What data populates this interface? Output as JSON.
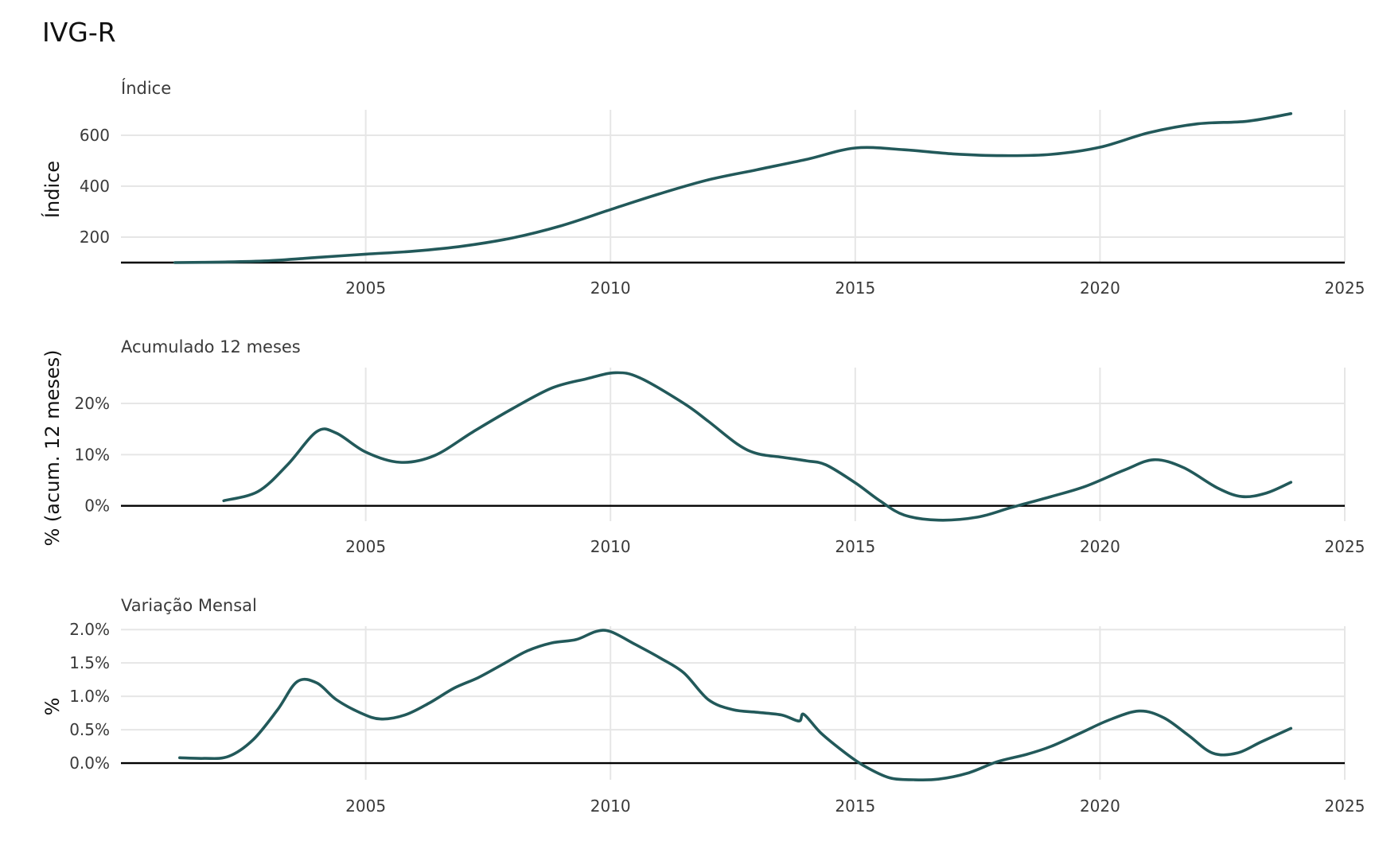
{
  "title": "IVG-R",
  "colors": {
    "line": "#22595a",
    "grid": "#e6e6e6",
    "baseline": "#000000"
  },
  "chart_data": [
    {
      "type": "line",
      "subtitle": "Índice",
      "ylabel": "Índice",
      "xlim": [
        2000,
        2025
      ],
      "ylim": [
        100,
        700
      ],
      "yticks": [
        200,
        400,
        600
      ],
      "yticklabels": [
        "200",
        "400",
        "600"
      ],
      "xticks": [
        2005,
        2010,
        2015,
        2020,
        2025
      ],
      "xticklabels": [
        "2005",
        "2010",
        "2015",
        "2020",
        "2025"
      ],
      "baseline": 100,
      "grid": true,
      "series": [
        {
          "x": [
            2001.1,
            2002,
            2003,
            2004,
            2005,
            2006,
            2007,
            2008,
            2009,
            2010,
            2011,
            2012,
            2013,
            2014,
            2015,
            2016,
            2017,
            2018,
            2019,
            2020,
            2021,
            2022,
            2023,
            2023.9
          ],
          "y": [
            100,
            102,
            107,
            120,
            133,
            145,
            165,
            197,
            245,
            308,
            370,
            425,
            465,
            505,
            550,
            543,
            527,
            520,
            525,
            553,
            610,
            645,
            655,
            685
          ]
        }
      ]
    },
    {
      "type": "line",
      "subtitle": "Acumulado 12 meses",
      "ylabel": "% (acum. 12 meses)",
      "xlim": [
        2000,
        2025
      ],
      "ylim": [
        -3,
        27
      ],
      "yticks": [
        0,
        10,
        20
      ],
      "yticklabels": [
        "0%",
        "10%",
        "20%"
      ],
      "xticks": [
        2005,
        2010,
        2015,
        2020,
        2025
      ],
      "xticklabels": [
        "2005",
        "2010",
        "2015",
        "2020",
        "2025"
      ],
      "baseline": 0,
      "grid": true,
      "series": [
        {
          "x": [
            2002.1,
            2002.8,
            2003.4,
            2004.0,
            2004.4,
            2005.0,
            2005.7,
            2006.4,
            2007.2,
            2008.0,
            2008.8,
            2009.5,
            2010.1,
            2010.6,
            2011.5,
            2012.0,
            2012.6,
            2013.0,
            2013.5,
            2014.0,
            2014.4,
            2015.0,
            2015.5,
            2016.0,
            2016.7,
            2017.5,
            2018.2,
            2019.0,
            2019.7,
            2020.5,
            2021.1,
            2021.7,
            2022.4,
            2022.9,
            2023.4,
            2023.9
          ],
          "y": [
            1.0,
            2.8,
            8.0,
            14.5,
            14.2,
            10.5,
            8.5,
            9.8,
            14.5,
            19.0,
            23.0,
            24.8,
            26.0,
            25.0,
            20.0,
            16.5,
            12.0,
            10.2,
            9.5,
            8.8,
            8.0,
            4.5,
            1.0,
            -1.8,
            -2.8,
            -2.2,
            -0.3,
            1.8,
            3.8,
            7.0,
            9.0,
            7.5,
            3.5,
            1.8,
            2.5,
            4.6
          ]
        }
      ]
    },
    {
      "type": "line",
      "subtitle": "Variação Mensal",
      "ylabel": "%",
      "xlim": [
        2000,
        2025
      ],
      "ylim": [
        -0.25,
        2.05
      ],
      "yticks": [
        0.0,
        0.5,
        1.0,
        1.5,
        2.0
      ],
      "yticklabels": [
        "0.0%",
        "0.5%",
        "1.0%",
        "1.5%",
        "2.0%"
      ],
      "xticks": [
        2005,
        2010,
        2015,
        2020,
        2025
      ],
      "xticklabels": [
        "2005",
        "2010",
        "2015",
        "2020",
        "2025"
      ],
      "baseline": 0,
      "grid": true,
      "series": [
        {
          "x": [
            2001.2,
            2001.7,
            2002.2,
            2002.7,
            2003.2,
            2003.6,
            2004.0,
            2004.4,
            2004.9,
            2005.3,
            2005.8,
            2006.3,
            2006.8,
            2007.3,
            2007.8,
            2008.3,
            2008.8,
            2009.3,
            2009.7,
            2010.0,
            2010.5,
            2011.0,
            2011.5,
            2012.0,
            2012.5,
            2013.0,
            2013.5,
            2013.85,
            2013.95,
            2014.3,
            2014.8,
            2015.2,
            2015.7,
            2016.2,
            2016.7,
            2017.3,
            2017.9,
            2018.5,
            2019.0,
            2019.6,
            2020.2,
            2020.8,
            2021.3,
            2021.8,
            2022.3,
            2022.8,
            2023.3,
            2023.9
          ],
          "y": [
            0.08,
            0.07,
            0.1,
            0.35,
            0.8,
            1.22,
            1.2,
            0.95,
            0.75,
            0.66,
            0.72,
            0.9,
            1.12,
            1.28,
            1.48,
            1.68,
            1.8,
            1.85,
            1.97,
            1.97,
            1.78,
            1.58,
            1.35,
            0.95,
            0.8,
            0.76,
            0.72,
            0.63,
            0.73,
            0.45,
            0.15,
            -0.05,
            -0.22,
            -0.25,
            -0.24,
            -0.15,
            0.02,
            0.13,
            0.25,
            0.45,
            0.65,
            0.78,
            0.68,
            0.42,
            0.15,
            0.15,
            0.32,
            0.52
          ]
        }
      ]
    }
  ]
}
